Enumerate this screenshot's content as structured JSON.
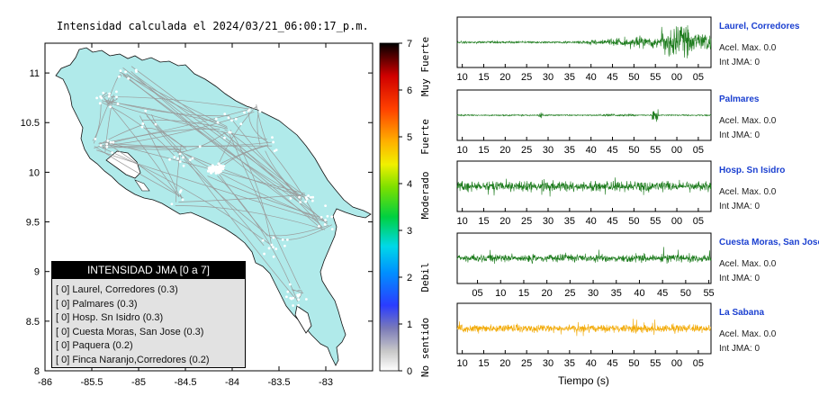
{
  "map": {
    "title": "Intensidad calculada el 2024/03/21_06:00:17_p.m.",
    "x_ticks": [
      "-86",
      "-85.5",
      "-85",
      "-84.5",
      "-84",
      "-83.5",
      "-83"
    ],
    "y_ticks": [
      "11",
      "10.5",
      "10",
      "9.5",
      "9",
      "8.5",
      "8"
    ],
    "land_color": "#b0eaea",
    "colorbar": {
      "ticks": [
        "0",
        "1",
        "2",
        "3",
        "4",
        "5",
        "6",
        "7"
      ],
      "labels": [
        "No sentido",
        "Debil",
        "Moderado",
        "Fuerte",
        "Muy Fuerte"
      ]
    },
    "legend": {
      "title": "INTENSIDAD JMA [0 a 7]",
      "items": [
        "[ 0]  Laurel, Corredores (0.3)",
        "[ 0]  Palmares (0.3)",
        "[ 0]  Hosp. Sn Isidro (0.3)",
        "[ 0]  Cuesta Moras, San Jose (0.3)",
        "[ 0]  Paquera (0.2)",
        "[ 0]  Finca Naranjo,Corredores (0.2)"
      ]
    }
  },
  "waveforms": {
    "xlabel": "Tiempo (s)",
    "stations": [
      {
        "name": "Laurel, Corredores",
        "acel": "Acel. Max. 0.0",
        "int": "Int JMA: 0",
        "color": "#1a7a1a",
        "ticks": [
          "10",
          "15",
          "20",
          "25",
          "30",
          "35",
          "40",
          "45",
          "50",
          "55",
          "00",
          "05"
        ]
      },
      {
        "name": "Palmares",
        "acel": "Acel. Max. 0.0",
        "int": "Int JMA: 0",
        "color": "#1a7a1a",
        "ticks": [
          "10",
          "15",
          "20",
          "25",
          "30",
          "35",
          "40",
          "45",
          "50",
          "55",
          "00",
          "05"
        ]
      },
      {
        "name": "Hosp. Sn Isidro",
        "acel": "Acel. Max. 0.0",
        "int": "Int JMA: 0",
        "color": "#1a7a1a",
        "ticks": [
          "10",
          "15",
          "20",
          "25",
          "30",
          "35",
          "40",
          "45",
          "50",
          "55",
          "00",
          "05"
        ]
      },
      {
        "name": "Cuesta Moras, San Jose",
        "acel": "Acel. Max. 0.0",
        "int": "Int JMA: 0",
        "color": "#1a7a1a",
        "ticks": [
          "05",
          "10",
          "15",
          "20",
          "25",
          "30",
          "35",
          "40",
          "45",
          "50",
          "55"
        ]
      },
      {
        "name": "La Sabana",
        "acel": "Acel. Max. 0.0",
        "int": "Int JMA: 0",
        "color": "#f2a800",
        "ticks": [
          "10",
          "15",
          "20",
          "25",
          "30",
          "35",
          "40",
          "45",
          "50",
          "55",
          "00",
          "05"
        ]
      }
    ]
  },
  "chart_data": [
    {
      "type": "heatmap",
      "title": "Intensidad calculada el 2024/03/21_06:00:17_p.m.",
      "xlim": [
        -86,
        -82.5
      ],
      "ylim": [
        8,
        11.3
      ],
      "colorbar_range": [
        0,
        7
      ],
      "legend_placement": "bottom-left"
    }
  ]
}
